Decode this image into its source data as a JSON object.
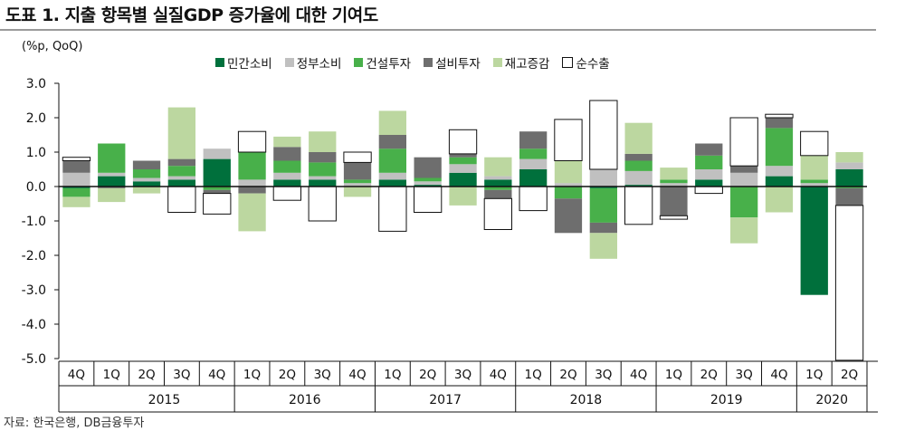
{
  "title": "도표 1. 지출 항목별 실질GDP 증가율에 대한 기여도",
  "source": "자료: 한국은행, DB금융투자",
  "chart_data": {
    "type": "bar",
    "stacked": true,
    "ylabel": "(%p, QoQ)",
    "ylim": [
      -5.0,
      3.0
    ],
    "yticks": [
      "3.0",
      "2.0",
      "1.0",
      "0.0",
      "-1.0",
      "-2.0",
      "-3.0",
      "-4.0",
      "-5.0"
    ],
    "categories": [
      "4Q",
      "1Q",
      "2Q",
      "3Q",
      "4Q",
      "1Q",
      "2Q",
      "3Q",
      "4Q",
      "1Q",
      "2Q",
      "3Q",
      "4Q",
      "1Q",
      "2Q",
      "3Q",
      "4Q",
      "1Q",
      "2Q",
      "3Q",
      "4Q",
      "1Q",
      "2Q"
    ],
    "years": [
      {
        "label": "2015",
        "start": 1,
        "end": 4
      },
      {
        "label": "2016",
        "start": 5,
        "end": 8
      },
      {
        "label": "2017",
        "start": 9,
        "end": 12
      },
      {
        "label": "2018",
        "start": 13,
        "end": 16
      },
      {
        "label": "2019",
        "start": 17,
        "end": 20
      },
      {
        "label": "2020",
        "start": 21,
        "end": 22
      }
    ],
    "legend_position": "top",
    "series": [
      {
        "name": "민간소비",
        "color": "#00703c",
        "outline": false,
        "values": [
          -0.05,
          0.3,
          0.15,
          0.2,
          0.8,
          0.0,
          0.2,
          0.2,
          0.0,
          0.2,
          0.05,
          0.4,
          0.2,
          0.5,
          0.0,
          -0.05,
          0.05,
          0.0,
          0.2,
          0.0,
          0.3,
          -3.15,
          0.5
        ]
      },
      {
        "name": "정부소비",
        "color": "#c0c0c0",
        "outline": false,
        "values": [
          0.4,
          0.1,
          0.1,
          0.1,
          0.3,
          0.2,
          0.2,
          0.1,
          0.1,
          0.2,
          0.1,
          0.25,
          0.1,
          0.3,
          0.1,
          0.5,
          0.4,
          0.1,
          0.3,
          0.4,
          0.3,
          0.1,
          0.2
        ]
      },
      {
        "name": "건설투자",
        "color": "#48b04a",
        "outline": false,
        "values": [
          -0.25,
          0.85,
          0.25,
          0.3,
          -0.1,
          0.8,
          0.35,
          0.4,
          0.1,
          0.7,
          0.1,
          0.2,
          -0.1,
          0.3,
          -0.35,
          -1.0,
          0.3,
          0.1,
          0.4,
          -0.9,
          1.1,
          0.1,
          -0.05
        ]
      },
      {
        "name": "설비투자",
        "color": "#6e6e6e",
        "outline": false,
        "values": [
          0.35,
          -0.05,
          0.25,
          0.2,
          -0.1,
          -0.2,
          0.4,
          0.3,
          0.5,
          0.4,
          0.6,
          0.1,
          -0.25,
          0.5,
          -1.0,
          -0.3,
          0.2,
          -0.85,
          0.35,
          0.2,
          0.3,
          0.0,
          -0.5
        ]
      },
      {
        "name": "재고증감",
        "color": "#bcd7a0",
        "outline": false,
        "values": [
          -0.3,
          -0.4,
          -0.2,
          1.5,
          0.0,
          -1.1,
          0.3,
          0.6,
          -0.3,
          0.7,
          0.0,
          -0.55,
          0.55,
          0.0,
          0.65,
          -0.75,
          0.9,
          0.35,
          0.0,
          -0.75,
          -0.75,
          0.7,
          0.3
        ]
      },
      {
        "name": "순수출",
        "color": "#ffffff",
        "outline": true,
        "values": [
          0.1,
          0.0,
          0.0,
          -0.75,
          -0.6,
          0.6,
          -0.4,
          -1.0,
          0.3,
          -1.3,
          -0.75,
          0.7,
          -0.9,
          -0.7,
          1.2,
          2.0,
          -1.1,
          -0.1,
          -0.2,
          1.4,
          0.1,
          0.7,
          -4.5
        ]
      }
    ]
  }
}
